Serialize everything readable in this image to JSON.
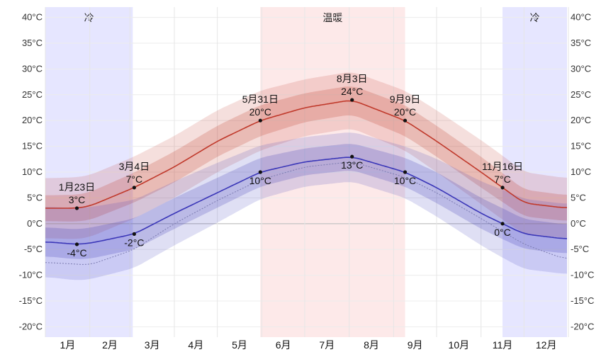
{
  "chart_data": {
    "type": "area",
    "ylim": [
      -22,
      42
    ],
    "y_ticks": [
      -20,
      -15,
      -10,
      -5,
      0,
      5,
      10,
      15,
      20,
      25,
      30,
      35,
      40
    ],
    "y_tick_labels": [
      "-20°C",
      "-15°C",
      "-10°C",
      "-5°C",
      "0°C",
      "5°C",
      "10°C",
      "15°C",
      "20°C",
      "25°C",
      "30°C",
      "35°C",
      "40°C"
    ],
    "month_labels": [
      "1月",
      "2月",
      "3月",
      "4月",
      "5月",
      "6月",
      "7月",
      "8月",
      "9月",
      "10月",
      "11月",
      "12月"
    ],
    "seasons": [
      {
        "label": "冷",
        "start_day": 1,
        "end_day": 62,
        "color": "#e2e2ff"
      },
      {
        "label": "温暖",
        "start_day": 151,
        "end_day": 252,
        "color": "#fde5e5"
      },
      {
        "label": "冷",
        "start_day": 320,
        "end_day": 365,
        "color": "#e2e2ff"
      }
    ],
    "series": [
      {
        "name": "",
        "role": "high",
        "color": "#c0392b",
        "x": [
          1,
          23,
          32,
          63,
          91,
          121,
          151,
          182,
          215,
          252,
          274,
          305,
          320,
          335,
          365
        ],
        "values": [
          3,
          3,
          3.4,
          7,
          11,
          16,
          20,
          22.5,
          24,
          20,
          16,
          10,
          7,
          4,
          3
        ],
        "band_inner": [
          2.5,
          2.6,
          2.7,
          2.9,
          3.0,
          3.0,
          3.0,
          2.8,
          2.8,
          3.0,
          3.0,
          3.0,
          2.8,
          2.6,
          2.5
        ],
        "band_outer": [
          5.8,
          6.0,
          6.0,
          6.0,
          6.0,
          6.0,
          5.8,
          5.5,
          5.5,
          5.8,
          6.0,
          6.2,
          6.2,
          6.0,
          5.8
        ]
      },
      {
        "name": "",
        "role": "low",
        "color": "#3b37b8",
        "x": [
          1,
          23,
          32,
          63,
          91,
          121,
          151,
          182,
          215,
          252,
          274,
          305,
          320,
          335,
          365
        ],
        "values": [
          -3.5,
          -4,
          -3.8,
          -2,
          2,
          6,
          10,
          12,
          13,
          10,
          7,
          2,
          0,
          -2,
          -3
        ],
        "band_inner": [
          2.8,
          2.9,
          3.0,
          3.0,
          3.0,
          2.9,
          2.8,
          2.6,
          2.6,
          2.8,
          3.0,
          3.0,
          3.0,
          2.9,
          2.8
        ],
        "band_outer": [
          6.8,
          7.0,
          7.0,
          6.6,
          6.2,
          5.8,
          5.2,
          4.8,
          4.8,
          5.0,
          5.6,
          6.2,
          6.6,
          6.8,
          6.8
        ]
      },
      {
        "name": "",
        "role": "dew-dotted",
        "color": "#7b7bb0",
        "x": [
          1,
          32,
          63,
          91,
          121,
          151,
          182,
          215,
          252,
          274,
          305,
          335,
          365
        ],
        "values": [
          -7.5,
          -8,
          -5,
          0,
          4.5,
          8.5,
          11,
          12,
          9,
          6,
          1,
          -4,
          -7
        ]
      }
    ],
    "annotations": [
      {
        "date": "1月23日",
        "value": 3,
        "label": "3°C",
        "x": 23,
        "placement": "above"
      },
      {
        "date": "",
        "value": -4,
        "label": "-4°C",
        "x": 23,
        "placement": "below"
      },
      {
        "date": "3月4日",
        "value": 7,
        "label": "7°C",
        "x": 63,
        "placement": "above"
      },
      {
        "date": "",
        "value": -2,
        "label": "-2°C",
        "x": 63,
        "placement": "below"
      },
      {
        "date": "5月31日",
        "value": 20,
        "label": "20°C",
        "x": 151,
        "placement": "above"
      },
      {
        "date": "",
        "value": 10,
        "label": "10°C",
        "x": 151,
        "placement": "below"
      },
      {
        "date": "8月3日",
        "value": 24,
        "label": "24°C",
        "x": 215,
        "placement": "above"
      },
      {
        "date": "",
        "value": 13,
        "label": "13°C",
        "x": 215,
        "placement": "below"
      },
      {
        "date": "9月9日",
        "value": 20,
        "label": "20°C",
        "x": 252,
        "placement": "above"
      },
      {
        "date": "",
        "value": 10,
        "label": "10°C",
        "x": 252,
        "placement": "below"
      },
      {
        "date": "11月16日",
        "value": 7,
        "label": "7°C",
        "x": 320,
        "placement": "above"
      },
      {
        "date": "",
        "value": 0,
        "label": "0°C",
        "x": 320,
        "placement": "below"
      }
    ]
  }
}
